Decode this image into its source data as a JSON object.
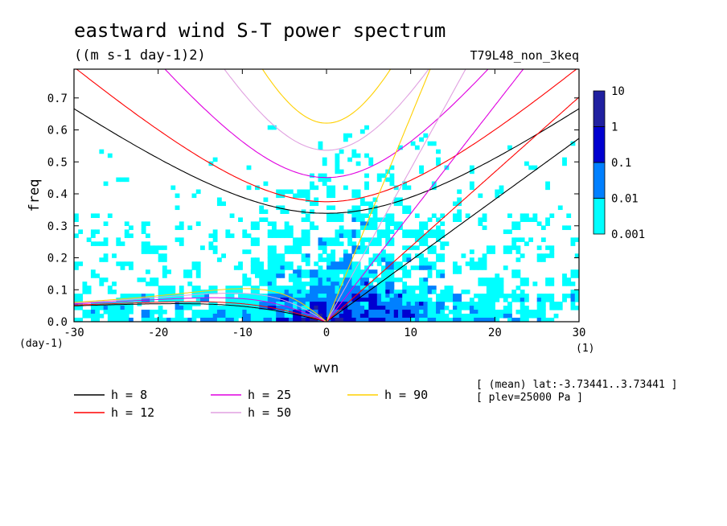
{
  "title": "eastward wind S-T power spectrum",
  "units": "((m s-1 day-1)2)",
  "run_label": "T79L48_non_3keq",
  "info_lines": [
    "[ (mean) lat:-3.73441..3.73441 ]",
    "[ plev=25000 Pa ]"
  ],
  "chart_data": {
    "type": "heatmap",
    "title": "eastward wind S-T power spectrum",
    "xlabel": "wvn",
    "x_unit": "(1)",
    "ylabel": "freq",
    "y_unit": "(day-1)",
    "xlim": [
      -30,
      30
    ],
    "ylim": [
      0,
      0.79
    ],
    "x_ticks": [
      -30,
      -20,
      -10,
      0,
      10,
      20,
      30
    ],
    "x_tick_labels": [
      "-30",
      "-20",
      "-10",
      "0",
      "10",
      "20",
      "30"
    ],
    "y_ticks": [
      0,
      0.1,
      0.2,
      0.3,
      0.4,
      0.5,
      0.6,
      0.7
    ],
    "y_tick_labels": [
      "0.0",
      "0.1",
      "0.2",
      "0.3",
      "0.4",
      "0.5",
      "0.6",
      "0.7"
    ],
    "colorbar": {
      "scale": "log",
      "levels": [
        0.001,
        0.01,
        0.1,
        1,
        10
      ],
      "labels": [
        "0.001",
        "0.01",
        "0.1",
        "1",
        "10"
      ],
      "colors": [
        "#00ffff",
        "#0080ff",
        "#0000d0",
        "#2020a0"
      ]
    },
    "legend": [
      {
        "label": "h =  8",
        "h": 8,
        "color": "#000000"
      },
      {
        "label": "h = 12",
        "h": 12,
        "color": "#ff0000"
      },
      {
        "label": "h = 25",
        "h": 25,
        "color": "#e000e0"
      },
      {
        "label": "h = 50",
        "h": 50,
        "color": "#e0a0e0"
      },
      {
        "label": "h = 90",
        "h": 90,
        "color": "#ffd000"
      }
    ]
  }
}
